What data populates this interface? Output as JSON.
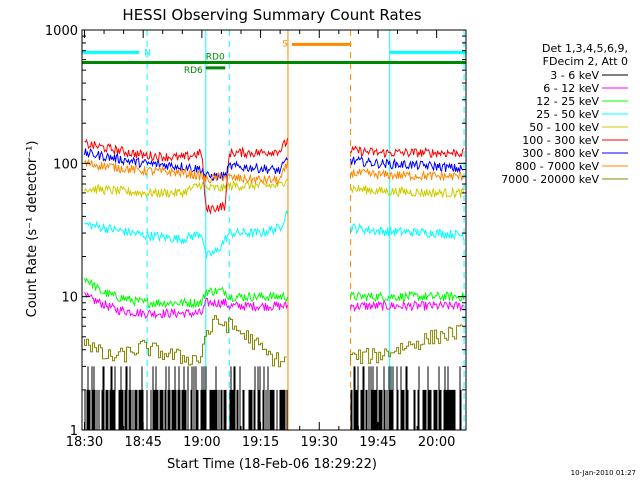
{
  "chart_data": {
    "type": "line",
    "title": "HESSI Observing Summary Count Rates",
    "xlabel": "Start Time (18-Feb-06 18:29:22)",
    "ylabel": "Count Rate (s⁻¹ detector⁻¹)",
    "yscale": "log",
    "ylim": [
      1,
      1000
    ],
    "xlim": [
      "18:29:22",
      "20:07:30"
    ],
    "x_ticks": [
      "18:30",
      "18:45",
      "19:00",
      "19:15",
      "19:30",
      "19:45",
      "20:00"
    ],
    "y_ticks": [
      "1",
      "10",
      "100",
      "1000"
    ],
    "legend": {
      "position": "right",
      "header": [
        "Det 1,3,4,5,6,9,",
        "FDecim 2, Att 0"
      ],
      "entries": [
        {
          "label": "3 - 6 keV",
          "color": "#000000"
        },
        {
          "label": "6 - 12 keV",
          "color": "#ff00ff"
        },
        {
          "label": "12 - 25 keV",
          "color": "#00ff00"
        },
        {
          "label": "25 - 50 keV",
          "color": "#00ffff"
        },
        {
          "label": "50 - 100 keV",
          "color": "#cccc00"
        },
        {
          "label": "100 - 300 keV",
          "color": "#ff0000"
        },
        {
          "label": "300 - 800 keV",
          "color": "#0000ff"
        },
        {
          "label": "800 - 7000 keV",
          "color": "#ff8800"
        },
        {
          "label": "7000 - 20000 keV",
          "color": "#888800"
        }
      ]
    },
    "series": [
      {
        "name": "3 - 6 keV",
        "color": "#000000",
        "style": "spiky",
        "segments": [
          {
            "x": [
              "18:30",
              "19:22"
            ],
            "y": [
              2.0,
              2.0
            ]
          },
          {
            "x": [
              "19:38",
              "20:07"
            ],
            "y": [
              2.0,
              2.0
            ]
          }
        ]
      },
      {
        "name": "6 - 12 keV",
        "color": "#ff00ff",
        "segments": [
          {
            "x": [
              "18:30",
              "18:34",
              "18:38",
              "18:45",
              "18:55",
              "19:00",
              "19:01",
              "19:06",
              "19:07",
              "19:22"
            ],
            "y": [
              10,
              9,
              8,
              7.5,
              7.5,
              7.5,
              9,
              9,
              8.5,
              8.5
            ]
          },
          {
            "x": [
              "19:38",
              "19:45",
              "20:00",
              "20:07"
            ],
            "y": [
              8.5,
              8.5,
              8.5,
              8.5
            ]
          }
        ]
      },
      {
        "name": "12 - 25 keV",
        "color": "#00ff00",
        "segments": [
          {
            "x": [
              "18:30",
              "18:34",
              "18:38",
              "18:45",
              "18:55",
              "19:00",
              "19:01",
              "19:06",
              "19:07",
              "19:22"
            ],
            "y": [
              14,
              11,
              10,
              9,
              9,
              9,
              11,
              11,
              10,
              10
            ]
          },
          {
            "x": [
              "19:38",
              "19:45",
              "20:00",
              "20:07"
            ],
            "y": [
              10,
              10,
              10,
              10
            ]
          }
        ]
      },
      {
        "name": "25 - 50 keV",
        "color": "#00ffff",
        "segments": [
          {
            "x": [
              "18:30",
              "18:45",
              "18:55",
              "19:00",
              "19:01",
              "19:04",
              "19:07",
              "19:15",
              "19:20",
              "19:22"
            ],
            "y": [
              35,
              29,
              27,
              30,
              20,
              22,
              30,
              30,
              33,
              45
            ]
          },
          {
            "x": [
              "19:38",
              "19:45",
              "20:00",
              "20:07"
            ],
            "y": [
              33,
              31,
              30,
              29
            ]
          }
        ]
      },
      {
        "name": "50 - 100 keV",
        "color": "#cccc00",
        "segments": [
          {
            "x": [
              "18:30",
              "18:45",
              "18:55",
              "19:00",
              "19:01",
              "19:06",
              "19:07",
              "19:15",
              "19:20",
              "19:22"
            ],
            "y": [
              65,
              60,
              60,
              70,
              65,
              65,
              68,
              68,
              68,
              80
            ]
          },
          {
            "x": [
              "19:38",
              "19:45",
              "20:00",
              "20:07"
            ],
            "y": [
              65,
              62,
              60,
              60
            ]
          }
        ]
      },
      {
        "name": "100 - 300 keV",
        "color": "#ff0000",
        "segments": [
          {
            "x": [
              "18:30",
              "18:45",
              "18:55",
              "19:00",
              "19:01",
              "19:06",
              "19:07",
              "19:15",
              "19:20",
              "19:22"
            ],
            "y": [
              140,
              115,
              110,
              120,
              45,
              48,
              120,
              120,
              125,
              150
            ]
          },
          {
            "x": [
              "19:38",
              "19:45",
              "20:00",
              "20:07"
            ],
            "y": [
              125,
              120,
              120,
              120
            ]
          }
        ]
      },
      {
        "name": "300 - 800 keV",
        "color": "#0000ff",
        "segments": [
          {
            "x": [
              "18:30",
              "18:45",
              "18:55",
              "19:00",
              "19:01",
              "19:06",
              "19:07",
              "19:15",
              "19:20",
              "19:22"
            ],
            "y": [
              120,
              100,
              95,
              90,
              80,
              80,
              95,
              92,
              88,
              110
            ]
          },
          {
            "x": [
              "19:38",
              "19:45",
              "20:00",
              "20:07"
            ],
            "y": [
              105,
              100,
              95,
              90
            ]
          }
        ]
      },
      {
        "name": "800 - 7000 keV",
        "color": "#ff8800",
        "segments": [
          {
            "x": [
              "18:30",
              "18:45",
              "18:55",
              "19:00",
              "19:01",
              "19:06",
              "19:07",
              "19:15",
              "19:20",
              "19:22"
            ],
            "y": [
              100,
              88,
              85,
              80,
              75,
              80,
              78,
              75,
              75,
              100
            ]
          },
          {
            "x": [
              "19:38",
              "19:45",
              "20:00",
              "20:07"
            ],
            "y": [
              85,
              82,
              80,
              80
            ]
          }
        ]
      },
      {
        "name": "7000 - 20000 keV",
        "color": "#888800",
        "style": "stepped",
        "segments": [
          {
            "x": [
              "18:30",
              "18:33",
              "18:36",
              "18:40",
              "18:45",
              "18:50",
              "18:55",
              "19:00",
              "19:01",
              "19:04",
              "19:08",
              "19:12",
              "19:18",
              "19:22"
            ],
            "y": [
              5,
              4,
              3.5,
              3.6,
              4.2,
              3.8,
              3.5,
              3.4,
              5,
              6.5,
              6,
              5,
              3.5,
              3.2
            ]
          },
          {
            "x": [
              "19:38",
              "19:45",
              "19:55",
              "20:00",
              "20:07"
            ],
            "y": [
              3.5,
              3.6,
              4.5,
              5,
              5.5
            ]
          }
        ]
      }
    ],
    "flag_bars": [
      {
        "label": "N",
        "color": "#00ffff",
        "y": 680,
        "x": [
          "18:29:22",
          "18:44"
        ]
      },
      {
        "label": "",
        "color": "#00ffff",
        "y": 680,
        "x": [
          "19:48",
          "20:07:30"
        ]
      },
      {
        "label": "S",
        "color": "#ff8800",
        "y": 780,
        "x": [
          "19:23",
          "19:38"
        ]
      },
      {
        "label": "RD0",
        "color": "#008800",
        "y": 570,
        "x": [
          "18:29:22",
          "20:07:30"
        ]
      },
      {
        "label": "RD6",
        "color": "#008800",
        "y": 520,
        "x": [
          "19:01",
          "19:06"
        ]
      }
    ],
    "vlines": [
      {
        "x": "18:29:22",
        "color": "#00ffff",
        "style": "solid"
      },
      {
        "x": "18:46",
        "color": "#00ffff",
        "style": "dashed"
      },
      {
        "x": "19:01",
        "color": "#00ffff",
        "style": "solid"
      },
      {
        "x": "19:07",
        "color": "#00ffff",
        "style": "dashed"
      },
      {
        "x": "19:22",
        "color": "#ff8800",
        "style": "solid"
      },
      {
        "x": "19:38",
        "color": "#ff8800",
        "style": "dashed"
      },
      {
        "x": "19:48",
        "color": "#00ffff",
        "style": "solid"
      },
      {
        "x": "20:07",
        "color": "#00ffff",
        "style": "dashed"
      }
    ]
  },
  "footer": {
    "timestamp": "10-Jan-2010 01:27"
  }
}
